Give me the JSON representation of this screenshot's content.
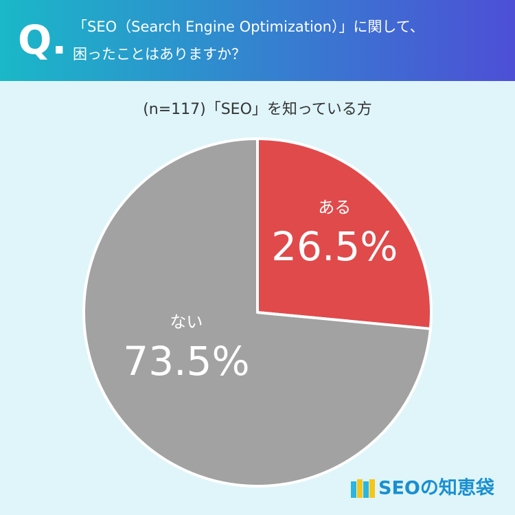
{
  "chart_data": {
    "type": "pie",
    "title_prefix": "Q.",
    "title_lines": [
      "「SEO（Search Engine Optimization）」に関して、",
      "困ったことはありますか？"
    ],
    "subtitle": "(n=117)「SEO」を知っている方",
    "categories": [
      "ある",
      "ない"
    ],
    "values": [
      26.5,
      73.5
    ],
    "value_labels": [
      "26.5%",
      "73.5%"
    ],
    "colors": [
      "#e04a4b",
      "#a2a2a2"
    ],
    "brand": "SEOの知恵袋"
  }
}
